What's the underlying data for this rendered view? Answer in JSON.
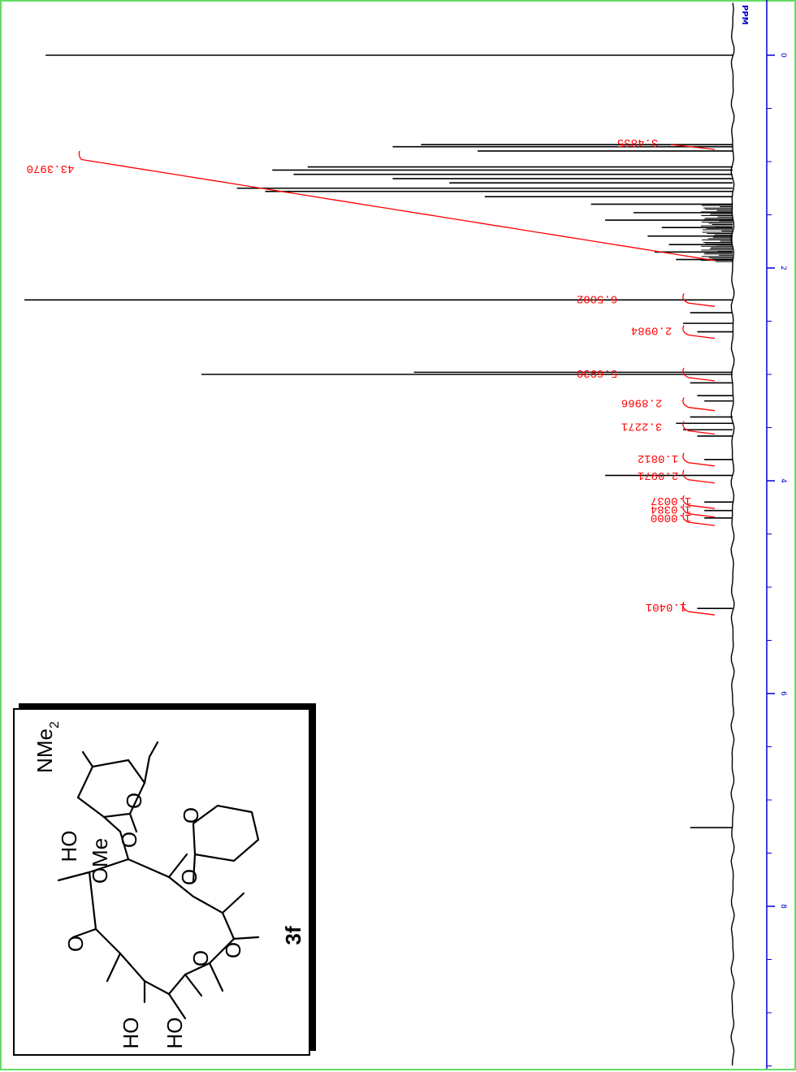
{
  "colors": {
    "border": "#66dd66",
    "spectrum": "#000000",
    "integral": "#ff0000",
    "axis": "#0000cc"
  },
  "chart_data": {
    "type": "line",
    "orientation": "rotated 90 degrees clockwise",
    "axis_label": "PPM",
    "xlim": [
      -0.5,
      10.0
    ],
    "ticks": [
      {
        "v": 0,
        "t": "0"
      },
      {
        "v": 2,
        "t": "2"
      },
      {
        "v": 4,
        "t": "4"
      },
      {
        "v": 6,
        "t": "6"
      },
      {
        "v": 8,
        "t": "8"
      }
    ],
    "peaks": [
      {
        "ppm": 0.0,
        "h": 0.97
      },
      {
        "ppm": 0.84,
        "h": 0.44
      },
      {
        "ppm": 0.86,
        "h": 0.48
      },
      {
        "ppm": 0.9,
        "h": 0.36
      },
      {
        "ppm": 1.05,
        "h": 0.6
      },
      {
        "ppm": 1.08,
        "h": 0.65
      },
      {
        "ppm": 1.12,
        "h": 0.62
      },
      {
        "ppm": 1.16,
        "h": 0.48
      },
      {
        "ppm": 1.2,
        "h": 0.4
      },
      {
        "ppm": 1.25,
        "h": 0.7
      },
      {
        "ppm": 1.28,
        "h": 0.66
      },
      {
        "ppm": 1.33,
        "h": 0.35
      },
      {
        "ppm": 1.4,
        "h": 0.2
      },
      {
        "ppm": 1.48,
        "h": 0.14
      },
      {
        "ppm": 1.55,
        "h": 0.18
      },
      {
        "ppm": 1.62,
        "h": 0.1
      },
      {
        "ppm": 1.7,
        "h": 0.12
      },
      {
        "ppm": 1.78,
        "h": 0.09
      },
      {
        "ppm": 1.85,
        "h": 0.11
      },
      {
        "ppm": 1.92,
        "h": 0.08
      },
      {
        "ppm": 2.3,
        "h": 1.0
      },
      {
        "ppm": 2.42,
        "h": 0.06
      },
      {
        "ppm": 2.52,
        "h": 0.07
      },
      {
        "ppm": 2.6,
        "h": 0.05
      },
      {
        "ppm": 2.98,
        "h": 0.45
      },
      {
        "ppm": 3.0,
        "h": 0.75
      },
      {
        "ppm": 3.08,
        "h": 0.06
      },
      {
        "ppm": 3.2,
        "h": 0.05
      },
      {
        "ppm": 3.25,
        "h": 0.04
      },
      {
        "ppm": 3.4,
        "h": 0.06
      },
      {
        "ppm": 3.46,
        "h": 0.08
      },
      {
        "ppm": 3.52,
        "h": 0.07
      },
      {
        "ppm": 3.58,
        "h": 0.05
      },
      {
        "ppm": 3.8,
        "h": 0.04
      },
      {
        "ppm": 3.95,
        "h": 0.18
      },
      {
        "ppm": 4.2,
        "h": 0.04
      },
      {
        "ppm": 4.28,
        "h": 0.04
      },
      {
        "ppm": 4.35,
        "h": 0.04
      },
      {
        "ppm": 5.2,
        "h": 0.05
      },
      {
        "ppm": 7.26,
        "h": 0.06
      }
    ],
    "integrals": [
      {
        "ppm": 1.12,
        "value": "43.3970"
      },
      {
        "ppm": 2.3,
        "value": "6.5002"
      },
      {
        "ppm": 2.6,
        "value": "2.0984"
      },
      {
        "ppm": 3.0,
        "value": "5.6930"
      },
      {
        "ppm": 3.28,
        "value": "2.8966"
      },
      {
        "ppm": 3.5,
        "value": "3.2271"
      },
      {
        "ppm": 3.8,
        "value": "1.0812"
      },
      {
        "ppm": 3.96,
        "value": "2.0971"
      },
      {
        "ppm": 4.2,
        "value": "1.0037"
      },
      {
        "ppm": 4.28,
        "value": "1.0384"
      },
      {
        "ppm": 4.36,
        "value": "1.0000"
      },
      {
        "ppm": 5.2,
        "value": "1.0401"
      }
    ],
    "shaded_integral_ppm": [
      0.84,
      4.4
    ],
    "small_integral": {
      "ppm": 0.84,
      "value": "3.4835"
    }
  },
  "structure": {
    "compound_label": "3f",
    "groups": {
      "nme2": "NMe",
      "nme2_sub": "2",
      "ho1": "HO",
      "ome": "OMe",
      "o_ring1": "O",
      "o_link1": "O",
      "o_thp": "O",
      "o_link2": "O",
      "o_lactone": "O",
      "o_carbonyl": "O",
      "o_ketone": "O",
      "ho2": "HO",
      "ho3": "HO"
    }
  }
}
